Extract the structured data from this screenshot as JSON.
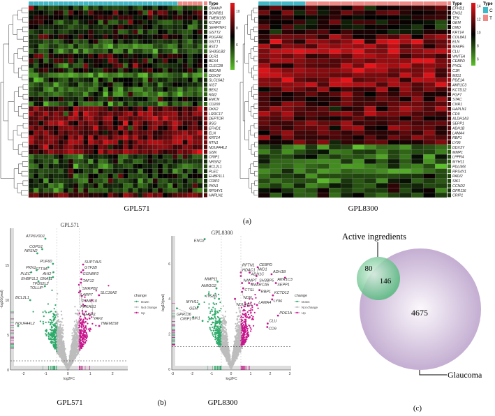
{
  "panel_labels": {
    "a": "(a)",
    "b": "(b)",
    "c": "(c)"
  },
  "colors": {
    "low": "#5cc02a",
    "mid": "#000000",
    "high": "#e8141a",
    "control": "#3fb8c8",
    "treat": "#f08a86",
    "down": "#2eaa6a",
    "notchange": "#bdbdbd",
    "up": "#c8158c",
    "venn_small": "#7dcf9c",
    "venn_big": "#cdb8d8"
  },
  "chart_data": [
    {
      "type": "heatmap",
      "title": "GPL571",
      "legend_title": "Type",
      "groups": [
        {
          "key": "C",
          "n": 30
        },
        {
          "key": "T",
          "n": 5
        }
      ],
      "scale_ticks": [
        "10",
        "8",
        "6",
        "4"
      ],
      "range": [
        3,
        11
      ],
      "genes": [
        "CMAHP",
        "BCKRB1",
        "TMEM158",
        "KCNK2",
        "SERPINF1",
        "GSTT2",
        "PDGFRL",
        "GSTT1",
        "BST2",
        "SH3GLB2",
        "OLR1",
        "BEX4",
        "CLEC2B",
        "ABCA8",
        "DDX3Y",
        "SLC16A2",
        "XIST",
        "BEX1",
        "RAI2",
        "EMCN",
        "CD200",
        "DKK2",
        "LRRC17",
        "DEPTOR",
        "BSG",
        "EFHD1",
        "ELN",
        "KRT14",
        "RTN1",
        "NDUFA4L2",
        "GSN",
        "CRIP1",
        "NRSN2",
        "BCL2L1",
        "PLEC",
        "EHBP1L1",
        "CRIP2",
        "PKN1",
        "RPS4Y1",
        "HAPLN1"
      ],
      "mean_level": [
        6,
        7,
        7.5,
        6,
        6,
        6,
        7,
        6,
        5,
        5,
        7.5,
        7,
        7,
        7,
        4,
        6,
        6,
        5,
        5,
        6.5,
        5,
        8.5,
        9,
        9,
        9,
        8.5,
        8.5,
        9,
        9,
        8.5,
        9,
        6,
        6,
        5.5,
        6,
        6,
        6,
        6,
        5.5,
        8.5
      ]
    },
    {
      "type": "heatmap",
      "title": "GPL8300",
      "legend_title": "Type",
      "legend": [
        "C",
        "T"
      ],
      "groups": [
        {
          "key": "C",
          "n": 4
        },
        {
          "key": "T",
          "n": 12
        }
      ],
      "scale_ticks": [
        "14",
        "12",
        "10",
        "8",
        "6"
      ],
      "range": [
        5,
        14.5
      ],
      "genes": [
        "EFHD1",
        "ENO2",
        "TEK",
        "GEM",
        "DMD",
        "KRT14",
        "COL8A1",
        "ELN",
        "MFAP5",
        "CLU",
        "WNT5A",
        "CEBPD",
        "PYGL",
        "C1R",
        "MID1",
        "PDE1A",
        "AKR1C3",
        "KCTD12",
        "FGF7",
        "STAC",
        "CNR1",
        "HAPLN1",
        "CD9",
        "ALDH1A3",
        "SEPP1",
        "ADH1B",
        "LAMA4",
        "RBP1",
        "LY96",
        "DDX3Y",
        "MMP1",
        "LPPR4",
        "MYH11",
        "PDLIM3",
        "RPS4Y1",
        "PADI2",
        "SIK1",
        "CCND2",
        "GPR116",
        "CRIP1"
      ],
      "mean_level": [
        10.5,
        10.5,
        10,
        10,
        10,
        10.5,
        12,
        12.5,
        12.5,
        13.5,
        12,
        12.5,
        12,
        12.5,
        12.5,
        13,
        12.5,
        11.5,
        11,
        11,
        11.5,
        11.5,
        12,
        11.5,
        11.5,
        11.5,
        11.5,
        11.5,
        11,
        7,
        7.5,
        8,
        7.5,
        7,
        7,
        8,
        8,
        8,
        8.5,
        8.5
      ]
    },
    {
      "type": "scatter",
      "title": "GPL571",
      "xlabel": "log2FC",
      "ylabel": "-log10(pval)",
      "xlim": [
        -2.6,
        2.6
      ],
      "ylim": [
        0,
        19.5
      ],
      "xticks": [
        "-2",
        "-1",
        "0",
        "1",
        "2"
      ],
      "yticks": [
        "0",
        "5",
        "10",
        "15"
      ],
      "fc_cutoff": 0.5,
      "p_cutoff": 1.3,
      "legend_title": "change",
      "legend": [
        "Down",
        "Not change",
        "Up"
      ],
      "labeled": [
        {
          "gene": "ATP6V0D1",
          "x": -1.01,
          "y": 18.8
        },
        {
          "gene": "COPG1",
          "x": -1.15,
          "y": 17.3
        },
        {
          "gene": "NRSN2",
          "x": -1.37,
          "y": 16.7
        },
        {
          "gene": "PUF60",
          "x": -0.67,
          "y": 15.2
        },
        {
          "gene": "PKN1",
          "x": -1.4,
          "y": 14.3
        },
        {
          "gene": "PLEC",
          "x": -1.64,
          "y": 14
        },
        {
          "gene": "STT3A",
          "x": -0.88,
          "y": 14.7
        },
        {
          "gene": "AHI2",
          "x": -0.65,
          "y": 14
        },
        {
          "gene": "TPD52L2",
          "x": -0.82,
          "y": 13.2
        },
        {
          "gene": "GNA11",
          "x": -0.67,
          "y": 13.3
        },
        {
          "gene": "EHBP1L1",
          "x": -1.32,
          "y": 12.7
        },
        {
          "gene": "TOLLIP",
          "x": -1.03,
          "y": 12
        },
        {
          "gene": "BCL2L1",
          "x": -1.69,
          "y": 10
        },
        {
          "gene": "NDUFA4L2",
          "x": -2.23,
          "y": 6.3
        },
        {
          "gene": "SUPT4H1",
          "x": 0.68,
          "y": 15.1
        },
        {
          "gene": "GTF2B",
          "x": 0.68,
          "y": 14.3
        },
        {
          "gene": "GGNBP2",
          "x": 0.6,
          "y": 14
        },
        {
          "gene": "TAF12",
          "x": 0.6,
          "y": 13
        },
        {
          "gene": "SNRPB2",
          "x": 0.58,
          "y": 12.5
        },
        {
          "gene": "LARP7",
          "x": 0.5,
          "y": 12.2
        },
        {
          "gene": "PSMD10",
          "x": 0.55,
          "y": 11.3
        },
        {
          "gene": "PRKAG1",
          "x": 0.5,
          "y": 11.1
        },
        {
          "gene": "AHSA1",
          "x": 0.62,
          "y": 10.6
        },
        {
          "gene": "SLC16A2",
          "x": 1.39,
          "y": 10.7
        },
        {
          "gene": "YAF2",
          "x": 1.07,
          "y": 10
        },
        {
          "gene": "TMEM158",
          "x": 1.4,
          "y": 6.3
        }
      ]
    },
    {
      "type": "scatter",
      "title": "GPL8300",
      "xlabel": "log2FC",
      "ylabel": "-log10(pval)",
      "xlim": [
        -3,
        3
      ],
      "ylim": [
        0,
        7.8
      ],
      "xticks": [
        "-3",
        "-2",
        "-1",
        "0",
        "1",
        "2",
        "3"
      ],
      "yticks": [
        "0",
        "2",
        "4",
        "6"
      ],
      "fc_cutoff": 0.5,
      "p_cutoff": 1.3,
      "legend_title": "change",
      "legend": [
        "Down",
        "Not change",
        "Up"
      ],
      "labeled": [
        {
          "gene": "ENO2",
          "x": -1.35,
          "y": 7.4
        },
        {
          "gene": "CEBPD",
          "x": 1.36,
          "y": 5.8
        },
        {
          "gene": "HDAC1",
          "x": 0.5,
          "y": 5.5
        },
        {
          "gene": "ADH1C",
          "x": 0.95,
          "y": 5.5
        },
        {
          "gene": "ADH1B",
          "x": 2.07,
          "y": 5.4
        },
        {
          "gene": "MID1",
          "x": 1.3,
          "y": 5.3
        },
        {
          "gene": "AKR1C3",
          "x": 2.76,
          "y": 5.2
        },
        {
          "gene": "RFTN1",
          "x": 0.5,
          "y": 5.3
        },
        {
          "gene": "MMP11",
          "x": -0.69,
          "y": 4.98
        },
        {
          "gene": "NAMPT",
          "x": 0.56,
          "y": 4.9
        },
        {
          "gene": "SMARCA5",
          "x": 0.92,
          "y": 4.9
        },
        {
          "gene": "SH3BP5",
          "x": 1.36,
          "y": 4.9
        },
        {
          "gene": "SEPP1",
          "x": 2.29,
          "y": 4.9
        },
        {
          "gene": "RBP1",
          "x": 1.45,
          "y": 4.5
        },
        {
          "gene": "CTSL",
          "x": 0.62,
          "y": 4.6
        },
        {
          "gene": "AMIGO2",
          "x": -0.75,
          "y": 4.6
        },
        {
          "gene": "NDN",
          "x": 0.56,
          "y": 4.4
        },
        {
          "gene": "KCTD12",
          "x": 2.14,
          "y": 4.2
        },
        {
          "gene": "ITGB5",
          "x": -0.62,
          "y": 4.0
        },
        {
          "gene": "NDUFB5",
          "x": 0.2,
          "y": 4.0
        },
        {
          "gene": "LY96",
          "x": 2.1,
          "y": 3.97
        },
        {
          "gene": "LAMA4",
          "x": 1.33,
          "y": 3.65
        },
        {
          "gene": "MYH11",
          "x": -1.64,
          "y": 3.7
        },
        {
          "gene": "GEM",
          "x": -1.7,
          "y": 3.55
        },
        {
          "gene": "GPR116",
          "x": -2.77,
          "y": 3.46
        },
        {
          "gene": "PDE1A",
          "x": 2.4,
          "y": 3.05
        },
        {
          "gene": "CRIP1",
          "x": -1.94,
          "y": 2.95
        },
        {
          "gene": "SIK1",
          "x": -1.46,
          "y": 2.75
        },
        {
          "gene": "CLU",
          "x": 1.87,
          "y": 2.6
        },
        {
          "gene": "CD9",
          "x": 1.85,
          "y": 2.4
        }
      ]
    },
    {
      "type": "venn",
      "sets": [
        {
          "name": "Active ingredients"
        },
        {
          "name": "Glaucoma"
        }
      ],
      "only_active": "80",
      "intersection": "146",
      "only_glaucoma": "4675"
    }
  ]
}
